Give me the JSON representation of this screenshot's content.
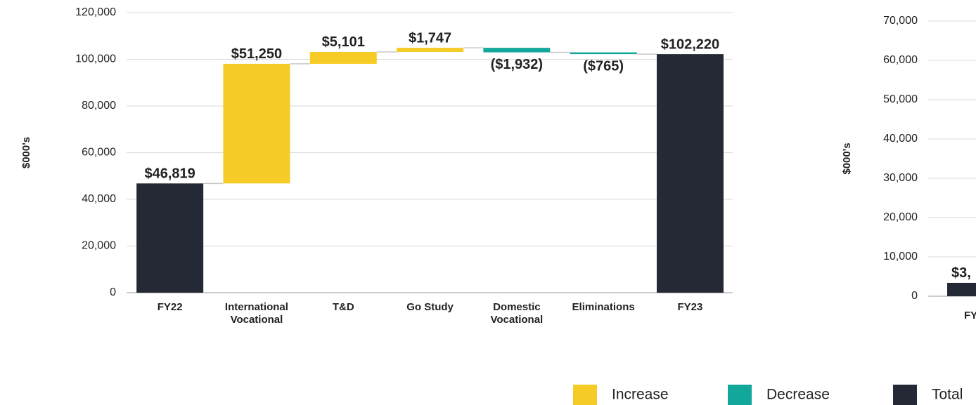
{
  "chart_data": [
    {
      "type": "waterfall",
      "y_label": "$000's",
      "categories": [
        "FY22",
        "International Vocational",
        "T&D",
        "Go Study",
        "Domestic Vocational",
        "Eliminations",
        "FY23"
      ],
      "measures": [
        "total",
        "relative",
        "relative",
        "relative",
        "relative",
        "relative",
        "total"
      ],
      "values": [
        46819,
        51250,
        5101,
        1747,
        -1932,
        -765,
        102220
      ],
      "value_labels": [
        "$46,819",
        "$51,250",
        "$5,101",
        "$1,747",
        "($1,932)",
        "($765)",
        "$102,220"
      ],
      "ylim": [
        0,
        120000
      ],
      "yticks": [
        0,
        {
          "value": 20000,
          "label": "20,000"
        },
        {
          "value": 40000,
          "label": "40,000"
        },
        {
          "value": 60000,
          "label": "60,000"
        },
        {
          "value": 80000,
          "label": "80,000"
        },
        {
          "value": 100000,
          "label": "100,000"
        },
        {
          "value": 120000,
          "label": "120,000"
        }
      ],
      "grid": true,
      "legend": [
        {
          "name": "Increase",
          "color": "#f6cb25"
        },
        {
          "name": "Decrease",
          "color": "#12a79b"
        },
        {
          "name": "Total",
          "color": "#252935"
        }
      ]
    },
    {
      "type": "bar",
      "y_label": "$000's",
      "categories": [
        "FY"
      ],
      "values": [
        3400
      ],
      "value_labels": [
        "$3,"
      ],
      "color": "#252935",
      "ylim": [
        0,
        70000
      ],
      "yticks": [
        0,
        {
          "value": 10000,
          "label": "10,000"
        },
        {
          "value": 20000,
          "label": "20,000"
        },
        {
          "value": 30000,
          "label": "30,000"
        },
        {
          "value": 40000,
          "label": "40,000"
        },
        {
          "value": 50000,
          "label": "50,000"
        },
        {
          "value": 60000,
          "label": "60,000"
        },
        {
          "value": 70000,
          "label": "70,000"
        }
      ],
      "grid": true
    }
  ]
}
